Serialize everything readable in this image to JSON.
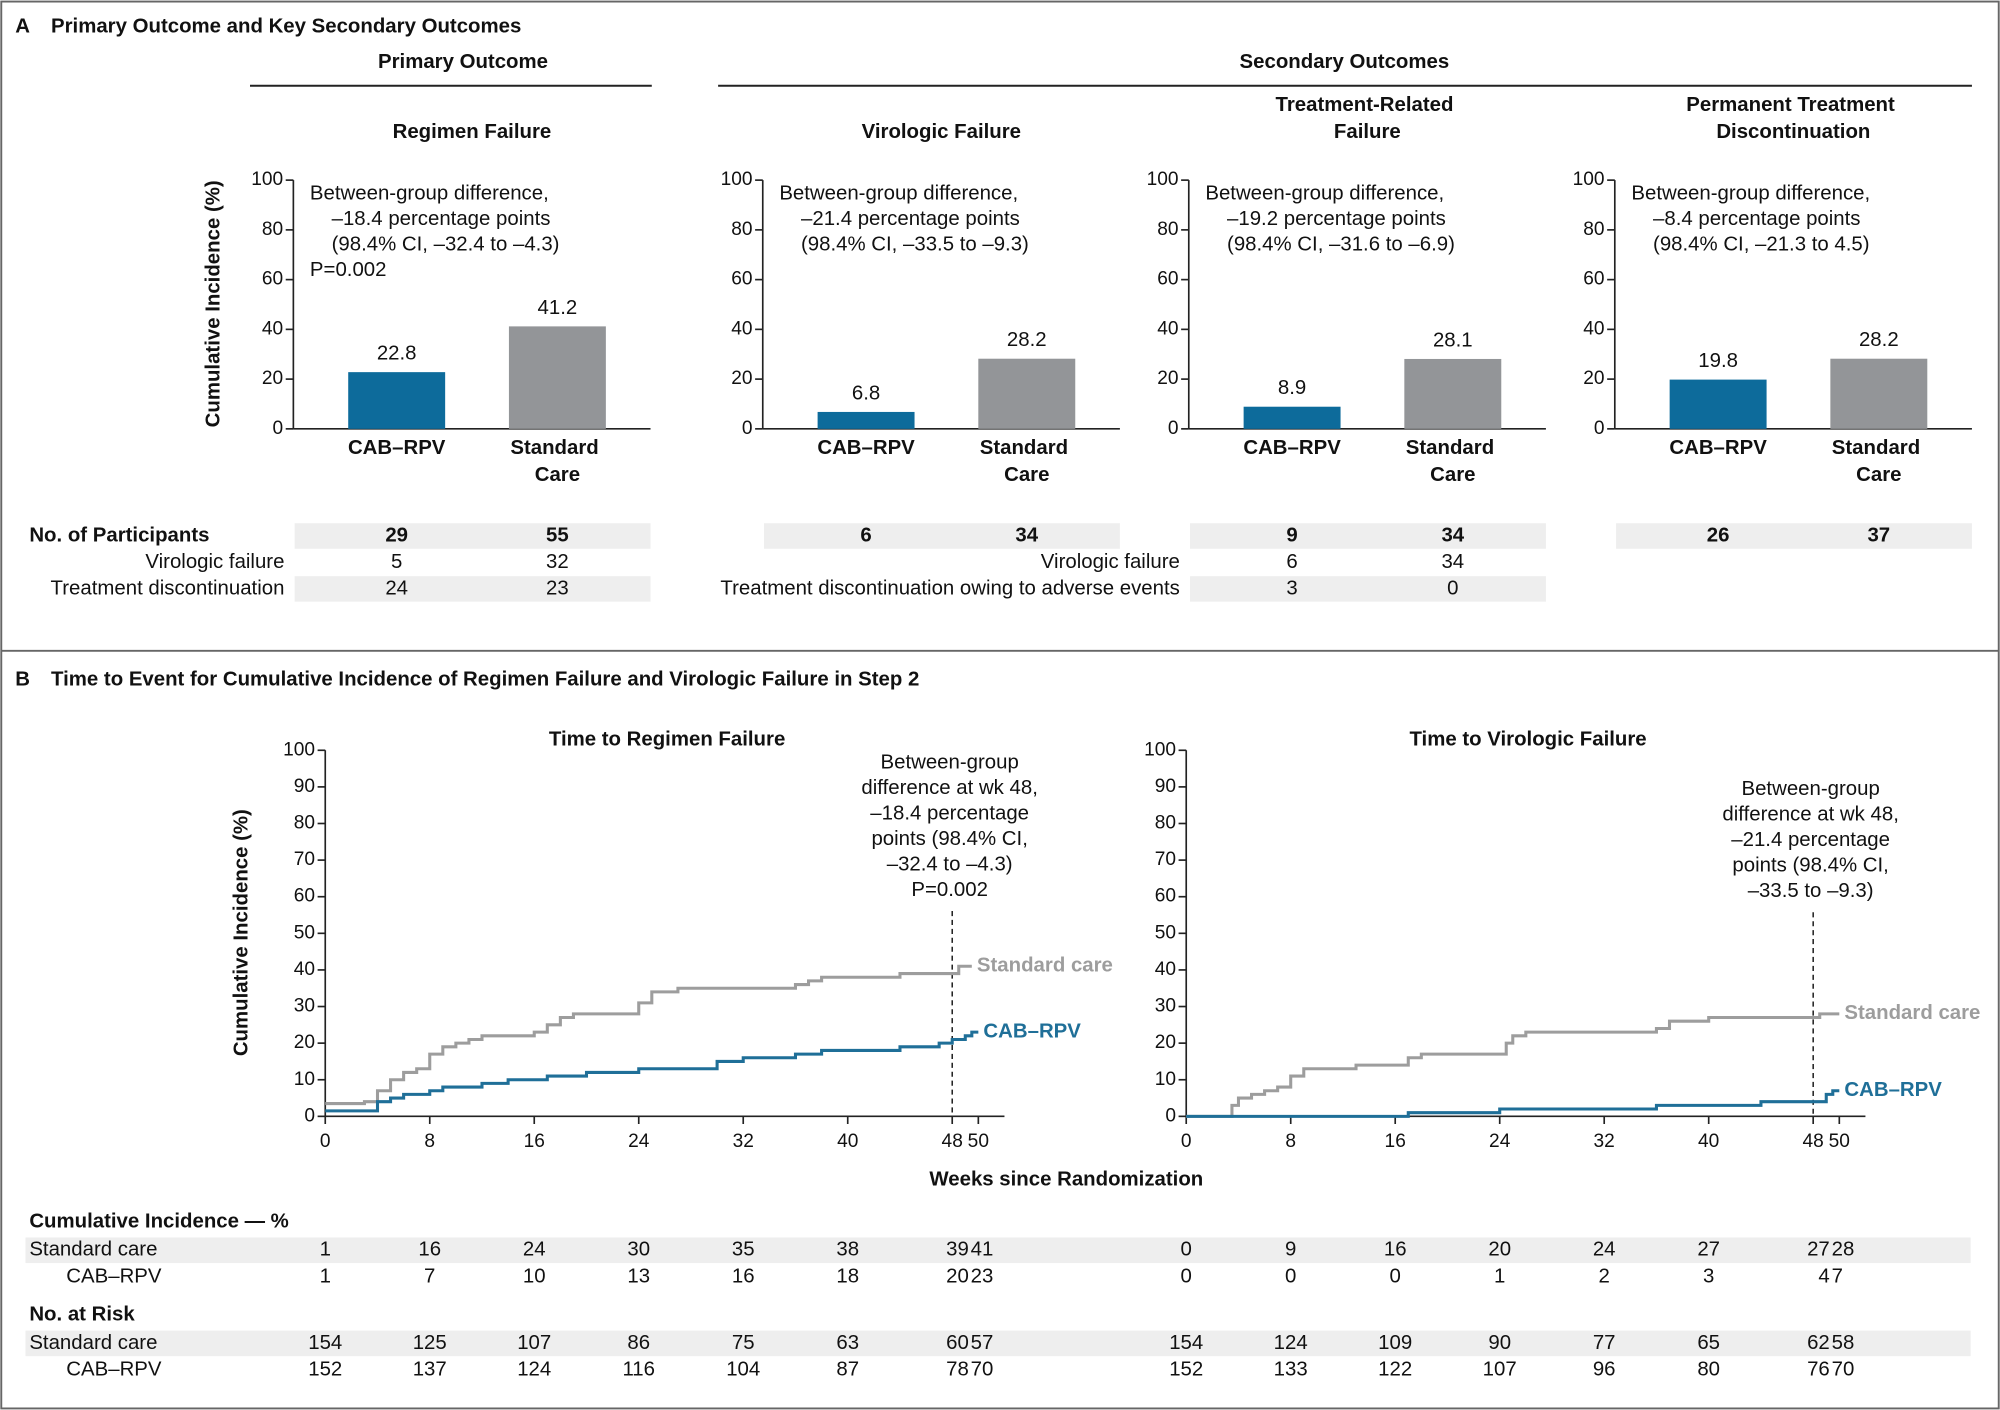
{
  "panel_a": {
    "label": "A",
    "title": "Primary Outcome and Key Secondary Outcomes",
    "primary_header": "Primary Outcome",
    "secondary_header": "Secondary Outcomes"
  },
  "chart_data": [
    {
      "type": "bar",
      "title": "Regimen Failure",
      "ylabel": "Cumulative Incidence (%)",
      "categories": [
        "CAB–RPV",
        "Standard Care"
      ],
      "values": [
        22.8,
        41.2
      ],
      "colors": [
        "#0d6b9b",
        "#939598"
      ],
      "ylim": [
        0,
        100
      ],
      "yticks": [
        0,
        20,
        40,
        60,
        80,
        100
      ],
      "annotation": [
        "Between-group difference,",
        "–18.4 percentage points",
        "(98.4% CI, –32.4 to –4.3)",
        "P=0.002"
      ]
    },
    {
      "type": "bar",
      "title": "Virologic Failure",
      "categories": [
        "CAB–RPV",
        "Standard Care"
      ],
      "values": [
        6.8,
        28.2
      ],
      "colors": [
        "#0d6b9b",
        "#939598"
      ],
      "ylim": [
        0,
        100
      ],
      "yticks": [
        0,
        20,
        40,
        60,
        80,
        100
      ],
      "annotation": [
        "Between-group difference,",
        "–21.4 percentage points",
        "(98.4% CI, –33.5 to –9.3)"
      ]
    },
    {
      "type": "bar",
      "title": "Treatment-Related Failure",
      "categories": [
        "CAB–RPV",
        "Standard Care"
      ],
      "values": [
        8.9,
        28.1
      ],
      "colors": [
        "#0d6b9b",
        "#939598"
      ],
      "ylim": [
        0,
        100
      ],
      "yticks": [
        0,
        20,
        40,
        60,
        80,
        100
      ],
      "annotation": [
        "Between-group difference,",
        "–19.2 percentage points",
        "(98.4% CI, –31.6 to –6.9)"
      ]
    },
    {
      "type": "bar",
      "title": "Permanent Treatment Discontinuation",
      "categories": [
        "CAB–RPV",
        "Standard Care"
      ],
      "values": [
        19.8,
        28.2
      ],
      "colors": [
        "#0d6b9b",
        "#939598"
      ],
      "ylim": [
        0,
        100
      ],
      "yticks": [
        0,
        20,
        40,
        60,
        80,
        100
      ],
      "annotation": [
        "Between-group difference,",
        "–8.4 percentage points",
        "(98.4% CI, –21.3 to 4.5)"
      ]
    },
    {
      "type": "line",
      "title": "Time to Regimen Failure",
      "ylabel": "Cumulative Incidence (%)",
      "xlabel": "Weeks since Randomization",
      "xlim": [
        0,
        52
      ],
      "xticks": [
        0,
        8,
        16,
        24,
        32,
        40,
        48,
        50
      ],
      "ylim": [
        0,
        100
      ],
      "yticks": [
        0,
        10,
        20,
        30,
        40,
        50,
        60,
        70,
        80,
        90,
        100
      ],
      "annotation": [
        "Between-group",
        "difference at wk 48,",
        "–18.4 percentage",
        "points (98.4% CI,",
        "–32.4 to –4.3)",
        "P=0.002"
      ],
      "annotation_x": 48,
      "series": [
        {
          "name": "Standard care",
          "color": "#9d9d9d",
          "x": [
            0,
            3,
            3,
            4,
            4,
            5,
            5,
            6,
            6,
            7,
            7,
            8,
            8,
            9,
            9,
            10,
            10,
            11,
            11,
            12,
            12,
            16,
            16,
            17,
            17,
            18,
            18,
            19,
            19,
            24,
            24,
            25,
            25,
            27,
            27,
            36,
            36,
            37,
            37,
            38,
            38,
            44,
            44,
            48.5,
            48.5,
            49.5
          ],
          "values": [
            3.5,
            3.5,
            4,
            4,
            7,
            7,
            10,
            10,
            12,
            12,
            13,
            13,
            17,
            17,
            19,
            19,
            20,
            20,
            21,
            21,
            22,
            22,
            23,
            23,
            25,
            25,
            27,
            27,
            28,
            28,
            31,
            31,
            34,
            34,
            35,
            35,
            36,
            36,
            37,
            37,
            38,
            38,
            39,
            39,
            41,
            41
          ]
        },
        {
          "name": "CAB–RPV",
          "color": "#1f6f98",
          "x": [
            0,
            4,
            4,
            5,
            5,
            6,
            6,
            8,
            8,
            9,
            9,
            12,
            12,
            14,
            14,
            17,
            17,
            20,
            20,
            24,
            24,
            30,
            30,
            32,
            32,
            36,
            36,
            38,
            38,
            44,
            44,
            47,
            47,
            48,
            48,
            49,
            49,
            49.5,
            49.5,
            50
          ],
          "values": [
            1.5,
            1.5,
            4,
            4,
            5,
            5,
            6,
            6,
            7,
            7,
            8,
            8,
            9,
            9,
            10,
            10,
            11,
            11,
            12,
            12,
            13,
            13,
            15,
            15,
            16,
            16,
            17,
            17,
            18,
            18,
            19,
            19,
            20,
            20,
            21,
            21,
            22,
            22,
            23,
            23
          ]
        }
      ]
    },
    {
      "type": "line",
      "title": "Time to Virologic Failure",
      "xlim": [
        0,
        52
      ],
      "xticks": [
        0,
        8,
        16,
        24,
        32,
        40,
        48,
        50
      ],
      "ylim": [
        0,
        100
      ],
      "yticks": [
        0,
        10,
        20,
        30,
        40,
        50,
        60,
        70,
        80,
        90,
        100
      ],
      "annotation": [
        "Between-group",
        "difference at wk 48,",
        "–21.4 percentage",
        "points (98.4% CI,",
        "–33.5 to –9.3)"
      ],
      "annotation_x": 48,
      "series": [
        {
          "name": "Standard care",
          "color": "#9d9d9d",
          "x": [
            0,
            3.5,
            3.5,
            4,
            4,
            5,
            5,
            6,
            6,
            7,
            7,
            8,
            8,
            9,
            9,
            13,
            13,
            17,
            17,
            18,
            18,
            24.5,
            24.5,
            25,
            25,
            26,
            26,
            36,
            36,
            37,
            37,
            40,
            40,
            48.5,
            48.5,
            50
          ],
          "values": [
            0,
            0,
            3,
            3,
            5,
            5,
            6,
            6,
            7,
            7,
            8,
            8,
            11,
            11,
            13,
            13,
            14,
            14,
            16,
            16,
            17,
            17,
            20,
            20,
            22,
            22,
            23,
            23,
            24,
            24,
            26,
            26,
            27,
            27,
            28,
            28
          ]
        },
        {
          "name": "CAB–RPV",
          "color": "#1f6f98",
          "x": [
            0,
            17,
            17,
            24,
            24,
            36,
            36,
            44,
            44,
            49,
            49,
            49.5,
            49.5,
            50
          ],
          "values": [
            0,
            0,
            1,
            1,
            2,
            2,
            3,
            3,
            4,
            4,
            6,
            6,
            7,
            7
          ]
        }
      ]
    }
  ],
  "participants": {
    "title": "No. of Participants",
    "groups": [
      {
        "totals": [
          29,
          55
        ],
        "rows": [
          {
            "label": "Virologic failure",
            "values": [
              5,
              32
            ]
          },
          {
            "label": "Treatment discontinuation",
            "values": [
              24,
              23
            ]
          }
        ]
      },
      {
        "totals": [
          6,
          34
        ]
      },
      {
        "totals": [
          9,
          34
        ],
        "rows": [
          {
            "label": "Virologic failure",
            "values": [
              6,
              34
            ]
          },
          {
            "label": "Treatment discontinuation owing to adverse events",
            "values": [
              3,
              0
            ]
          }
        ]
      },
      {
        "totals": [
          26,
          37
        ]
      }
    ]
  },
  "panel_b": {
    "label": "B",
    "title": "Time to Event for Cumulative Incidence of Regimen Failure and Virologic Failure in Step 2"
  },
  "risk_tables": {
    "incidence_title": "Cumulative Incidence — %",
    "incidence": [
      {
        "label": "Standard care",
        "values": [
          [
            1,
            16,
            24,
            30,
            35,
            38,
            39,
            41
          ],
          [
            0,
            9,
            16,
            20,
            24,
            27,
            27,
            28
          ]
        ]
      },
      {
        "label": "CAB–RPV",
        "values": [
          [
            1,
            7,
            10,
            13,
            16,
            18,
            20,
            23
          ],
          [
            0,
            0,
            0,
            1,
            2,
            3,
            4,
            7
          ]
        ]
      }
    ],
    "risk_title": "No. at Risk",
    "at_risk": [
      {
        "label": "Standard care",
        "values": [
          [
            154,
            125,
            107,
            86,
            75,
            63,
            60,
            57
          ],
          [
            154,
            124,
            109,
            90,
            77,
            65,
            62,
            58
          ]
        ]
      },
      {
        "label": "CAB–RPV",
        "values": [
          [
            152,
            137,
            124,
            116,
            104,
            87,
            78,
            70
          ],
          [
            152,
            133,
            122,
            107,
            96,
            80,
            76,
            70
          ]
        ]
      }
    ]
  }
}
